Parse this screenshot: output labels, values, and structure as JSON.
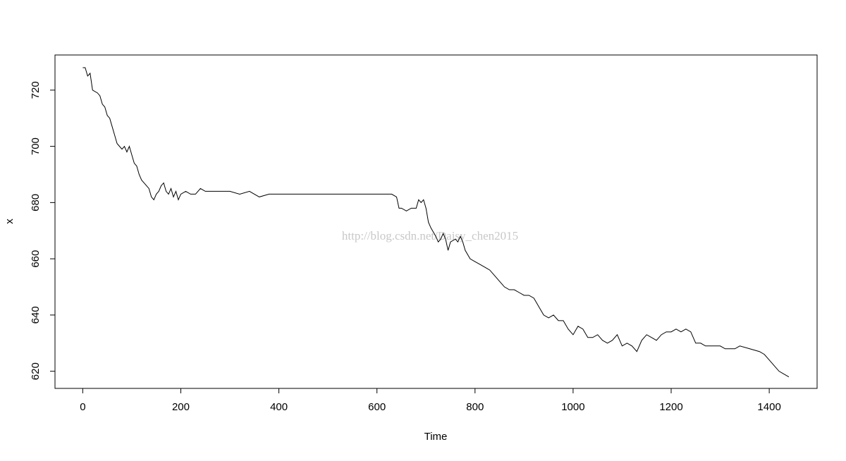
{
  "chart_data": {
    "type": "line",
    "xlabel": "Time",
    "ylabel": "x",
    "annotation": "http://blog.csdn.net/Daisy_chen2015",
    "x": [
      0,
      5,
      10,
      15,
      20,
      30,
      35,
      40,
      45,
      50,
      55,
      60,
      65,
      70,
      75,
      80,
      85,
      90,
      95,
      100,
      105,
      110,
      115,
      120,
      125,
      130,
      135,
      140,
      145,
      150,
      155,
      160,
      165,
      170,
      175,
      180,
      185,
      190,
      195,
      200,
      210,
      220,
      230,
      240,
      250,
      260,
      280,
      300,
      320,
      340,
      360,
      380,
      400,
      450,
      500,
      550,
      600,
      630,
      640,
      645,
      650,
      660,
      670,
      680,
      685,
      690,
      695,
      700,
      705,
      710,
      720,
      725,
      730,
      735,
      740,
      745,
      750,
      760,
      765,
      770,
      775,
      780,
      790,
      800,
      810,
      820,
      830,
      840,
      850,
      860,
      870,
      880,
      890,
      900,
      910,
      920,
      930,
      940,
      950,
      960,
      970,
      980,
      990,
      1000,
      1010,
      1020,
      1030,
      1040,
      1050,
      1060,
      1070,
      1080,
      1090,
      1100,
      1110,
      1120,
      1130,
      1140,
      1150,
      1160,
      1170,
      1180,
      1190,
      1200,
      1210,
      1220,
      1230,
      1240,
      1250,
      1260,
      1270,
      1280,
      1300,
      1310,
      1320,
      1330,
      1340,
      1360,
      1380,
      1390,
      1400,
      1410,
      1420,
      1430,
      1440
    ],
    "series": [
      {
        "name": "x",
        "color": "#000000",
        "values": [
          728,
          728,
          725,
          726,
          720,
          719,
          718,
          715,
          714,
          711,
          710,
          707,
          704,
          701,
          700,
          699,
          700,
          698,
          700,
          697,
          694,
          693,
          690,
          688,
          687,
          686,
          685,
          682,
          681,
          683,
          684,
          686,
          687,
          684,
          683,
          685,
          682,
          684,
          681,
          683,
          684,
          683,
          683,
          685,
          684,
          684,
          684,
          684,
          683,
          684,
          682,
          683,
          683,
          683,
          683,
          683,
          683,
          683,
          682,
          678,
          678,
          677,
          678,
          678,
          681,
          680,
          681,
          678,
          673,
          671,
          668,
          666,
          667,
          669,
          667,
          663,
          666,
          667,
          666,
          668,
          666,
          663,
          660,
          659,
          658,
          657,
          656,
          654,
          652,
          650,
          649,
          649,
          648,
          647,
          647,
          646,
          643,
          640,
          639,
          640,
          638,
          638,
          635,
          633,
          636,
          635,
          632,
          632,
          633,
          631,
          630,
          631,
          633,
          629,
          630,
          629,
          627,
          631,
          633,
          632,
          631,
          633,
          634,
          634,
          635,
          634,
          635,
          634,
          630,
          630,
          629,
          629,
          629,
          628,
          628,
          628,
          629,
          628,
          627,
          626,
          624,
          622,
          620,
          619,
          618
        ]
      }
    ],
    "xlim": [
      -56.6,
      1497.6
    ],
    "ylim": [
      613.9,
      732.5
    ],
    "xticks": [
      0,
      200,
      400,
      600,
      800,
      1000,
      1200,
      1400
    ],
    "yticks": [
      620,
      640,
      660,
      680,
      700,
      720
    ]
  }
}
